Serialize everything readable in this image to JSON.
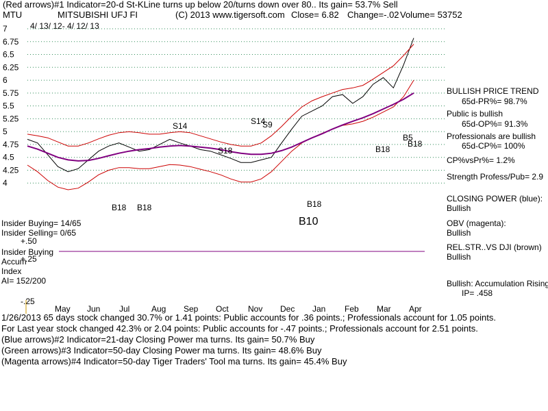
{
  "chart_data": {
    "type": "line",
    "title": "(Red arrows)#1 Indicator=20-d St-KLine turns up below 20/turns down over 80.. Its gain= 53.7% Sell",
    "header": {
      "ticker": "MTU",
      "name": "MITSUBISHI UFJ FI",
      "copyright": "(C) 2013 www.tigersoft.com",
      "close": "Close= 6.82",
      "change": "Change=-.02",
      "volume": "Volume= 53752",
      "date_range": "4/ 13/ 12- 4/ 12/ 13"
    },
    "ylim": [
      3.75,
      7.0
    ],
    "y_ticks": [
      "7",
      "6.75",
      "6.5",
      "6.25",
      "6",
      "5.75",
      "5.5",
      "5.25",
      "5",
      "4.75",
      "4.5",
      "4.25",
      "4"
    ],
    "y_tick_values": [
      7,
      6.75,
      6.5,
      6.25,
      6,
      5.75,
      5.5,
      5.25,
      5,
      4.75,
      4.5,
      4.25,
      4
    ],
    "x_ticks": [
      "May",
      "Jun",
      "Jul",
      "Aug",
      "Sep",
      "Oct",
      "Nov",
      "Dec",
      "Jan",
      "Feb",
      "Mar",
      "Apr"
    ],
    "series": [
      {
        "name": "Price",
        "color": "#000000",
        "values": [
          4.85,
          4.78,
          4.55,
          4.32,
          4.22,
          4.28,
          4.45,
          4.62,
          4.72,
          4.78,
          4.7,
          4.62,
          4.65,
          4.75,
          4.85,
          4.78,
          4.72,
          4.65,
          4.62,
          4.55,
          4.48,
          4.4,
          4.4,
          4.45,
          4.5,
          4.78,
          5.05,
          5.3,
          5.4,
          5.5,
          5.68,
          5.72,
          5.55,
          5.68,
          5.92,
          6.05,
          5.85,
          6.3,
          6.82
        ]
      },
      {
        "name": "Upper band",
        "color": "#cc0000",
        "values": [
          4.95,
          4.92,
          4.88,
          4.8,
          4.72,
          4.72,
          4.78,
          4.86,
          4.93,
          4.98,
          5.0,
          4.98,
          4.95,
          4.95,
          4.98,
          5.0,
          4.98,
          4.92,
          4.86,
          4.8,
          4.75,
          4.72,
          4.72,
          4.78,
          4.92,
          5.1,
          5.3,
          5.48,
          5.6,
          5.68,
          5.75,
          5.82,
          5.85,
          5.9,
          6.02,
          6.15,
          6.28,
          6.48,
          6.7
        ]
      },
      {
        "name": "Lower band",
        "color": "#cc0000",
        "values": [
          4.35,
          4.22,
          4.05,
          3.92,
          3.87,
          3.9,
          4.02,
          4.16,
          4.25,
          4.3,
          4.3,
          4.28,
          4.28,
          4.32,
          4.36,
          4.35,
          4.32,
          4.27,
          4.22,
          4.16,
          4.08,
          4.02,
          4.02,
          4.08,
          4.22,
          4.42,
          4.62,
          4.78,
          4.88,
          4.97,
          5.05,
          5.12,
          5.15,
          5.2,
          5.28,
          5.38,
          5.48,
          5.68,
          6.0
        ]
      },
      {
        "name": "Moving avg",
        "color": "#800080",
        "values": [
          4.72,
          4.66,
          4.58,
          4.5,
          4.45,
          4.43,
          4.44,
          4.48,
          4.53,
          4.58,
          4.62,
          4.65,
          4.67,
          4.7,
          4.72,
          4.73,
          4.72,
          4.7,
          4.68,
          4.65,
          4.61,
          4.58,
          4.56,
          4.56,
          4.58,
          4.63,
          4.7,
          4.79,
          4.88,
          4.96,
          5.05,
          5.13,
          5.2,
          5.27,
          5.35,
          5.44,
          5.53,
          5.63,
          5.75
        ]
      }
    ],
    "signals": [
      "S14",
      "S18",
      "S14",
      "S9",
      "B18",
      "B18",
      "B18",
      "B18",
      "B5",
      "B18",
      "B10"
    ],
    "indicator_labels": {
      "insider_buying": "Insider Buying= 14/65",
      "insider_selling": "Insider Selling= 0/65",
      "insider_buying_short": "Insider Buying",
      "accum": "Accum",
      "index": "Index",
      "ai": "AI= 152/200",
      "p50": "+.50",
      "p25": "+.25",
      "m25": "-.25"
    },
    "right_panel": {
      "bullish_price_trend": "BULLISH PRICE TREND",
      "pr": "65d-PR%= 98.7%",
      "public_bullish": "Public is bullish",
      "op": "65d-OP%= 91.3%",
      "professionals": "Professionals are bullish",
      "cp": "65d-CP%= 100%",
      "cpvspr": "CP%vsPr%=  1.2%",
      "strength": "Strength Profess/Pub= 2.9",
      "closing_power": "CLOSING POWER (blue):",
      "cp_bullish": "Bullish",
      "obv": "OBV (magenta):",
      "obv_bullish": "Bullish",
      "relstr": "REL.STR..VS DJI (brown)",
      "relstr_bullish": "Bullish",
      "accum_rising": "Bullish: Accumulation Rising",
      "ip": "IP=  .458"
    },
    "footer": [
      "1/26/2013 65 days stock changed  30.7% or  1.41 points:  Public accounts for  .36 points.;  Professionals account for  1.05 points.",
      "For Last year stock changed  42.3% or  2.04 points:  Public accounts for -.47 points.;  Professionals account for  2.51 points.",
      "(Blue arrows)#2 Indicator=21-day Closing Power ma turns. Its gain= 50.7% Buy",
      "(Green arrows)#3 Indicator=50-day Closing Power ma turns. Its gain= 48.6% Buy",
      "(Magenta arrows)#4 Indicator=50-day Tiger Traders' Tool ma turns. Its gain= 45.4% Buy"
    ]
  }
}
